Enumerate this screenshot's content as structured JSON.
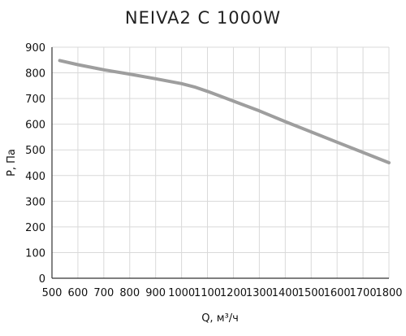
{
  "chart_data": {
    "type": "line",
    "title": "NEIVA2 C 1000W",
    "xlabel": "Q, м³/ч",
    "ylabel": "P, Па",
    "xlim": [
      500,
      1800
    ],
    "ylim": [
      0,
      900
    ],
    "x_ticks": [
      500,
      600,
      700,
      800,
      900,
      1000,
      1100,
      1200,
      1300,
      1400,
      1500,
      1600,
      1700,
      1800
    ],
    "y_ticks": [
      0,
      100,
      200,
      300,
      400,
      500,
      600,
      700,
      800,
      900
    ],
    "grid": true,
    "line_color": "#9e9e9e",
    "grid_color": "#d9d9d9",
    "series": [
      {
        "x": [
          530,
          600,
          700,
          800,
          900,
          1000,
          1050,
          1100,
          1200,
          1300,
          1400,
          1500,
          1600,
          1700,
          1800
        ],
        "values": [
          848,
          832,
          812,
          795,
          777,
          758,
          745,
          728,
          690,
          652,
          610,
          570,
          530,
          490,
          450
        ]
      }
    ]
  }
}
